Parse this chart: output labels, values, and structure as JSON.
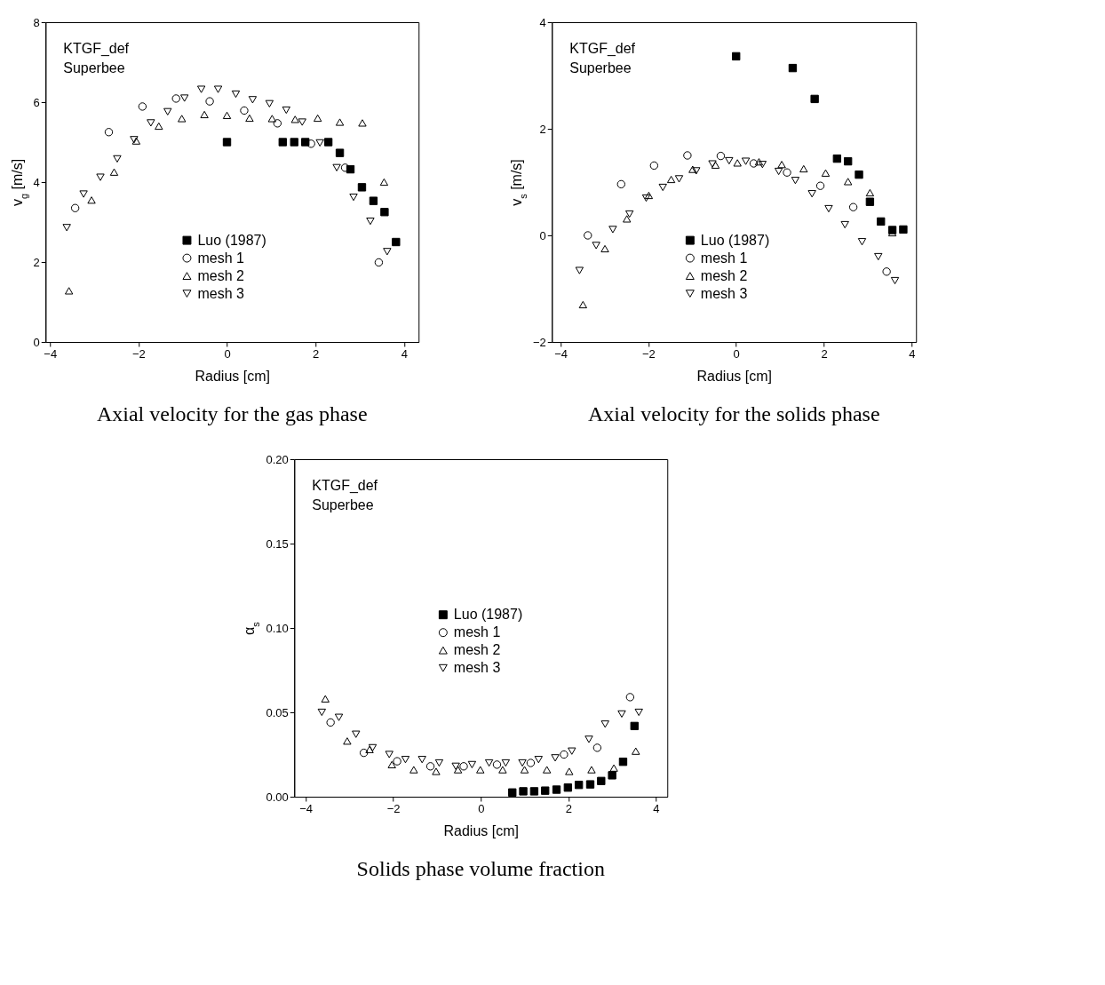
{
  "chart_data": [
    {
      "type": "scatter",
      "title": "Axial velocity for the gas phase",
      "xlabel": "Radius [cm]",
      "ylabel": "v$_{g}$ [m/s]",
      "annotations": [
        "KTGF_def",
        "Superbee"
      ],
      "xlim": [
        -4.1,
        4.33
      ],
      "xticks": [
        -4,
        -2,
        0,
        2,
        4
      ],
      "ylim": [
        0,
        8
      ],
      "yticks": [
        0,
        2,
        4,
        6,
        8
      ],
      "legend": "bottom",
      "grid": false,
      "series": [
        {
          "name": "Luo (1987)",
          "color": "#000000",
          "marker": "square",
          "x": [
            0,
            1.26,
            1.52,
            1.77,
            2.29,
            2.55,
            2.79,
            3.05,
            3.31,
            3.56,
            3.82
          ],
          "values": [
            5.0,
            5.0,
            5.0,
            5.0,
            5.0,
            4.73,
            4.32,
            3.87,
            3.53,
            3.25,
            2.5
          ]
        },
        {
          "name": "mesh 1",
          "color": "#000000",
          "marker": "circle",
          "x": [
            -3.43,
            -2.67,
            -1.91,
            -1.15,
            -0.39,
            0.39,
            1.14,
            1.9,
            2.67,
            3.43
          ],
          "values": [
            3.35,
            5.25,
            5.89,
            6.09,
            6.02,
            5.79,
            5.47,
            4.96,
            4.36,
            1.99
          ]
        },
        {
          "name": "mesh 2",
          "color": "#000000",
          "marker": "triangle",
          "x": [
            -3.57,
            -3.06,
            -2.55,
            -2.05,
            -1.54,
            -1.02,
            -0.51,
            0,
            0.51,
            1.02,
            1.54,
            2.05,
            2.55,
            3.06,
            3.55
          ],
          "values": [
            1.28,
            3.55,
            4.25,
            5.03,
            5.4,
            5.59,
            5.69,
            5.67,
            5.6,
            5.59,
            5.57,
            5.6,
            5.5,
            5.48,
            4.0
          ]
        },
        {
          "name": "mesh 3",
          "color": "#000000",
          "marker": "triangle-down",
          "x": [
            -3.62,
            -3.24,
            -2.86,
            -2.48,
            -2.1,
            -1.72,
            -1.34,
            -0.96,
            -0.58,
            -0.2,
            0.2,
            0.58,
            0.96,
            1.34,
            1.7,
            2.1,
            2.48,
            2.86,
            3.24,
            3.62
          ],
          "values": [
            2.86,
            3.7,
            4.12,
            4.58,
            5.06,
            5.48,
            5.76,
            6.1,
            6.32,
            6.32,
            6.2,
            6.06,
            5.96,
            5.8,
            5.5,
            4.98,
            4.36,
            3.62,
            3.02,
            2.26
          ]
        }
      ]
    },
    {
      "type": "scatter",
      "title": "Axial velocity for the solids phase",
      "xlabel": "Radius [cm]",
      "ylabel": "v$_{s}$ [m/s]",
      "annotations": [
        "KTGF_def",
        "Superbee"
      ],
      "xlim": [
        -4.2,
        4.1
      ],
      "xticks": [
        -4,
        -2,
        0,
        2,
        4
      ],
      "ylim": [
        -2,
        4
      ],
      "yticks": [
        -2,
        0,
        2,
        4
      ],
      "legend": "bottom",
      "grid": false,
      "series": [
        {
          "name": "Luo (1987)",
          "color": "#000000",
          "marker": "square",
          "x": [
            0,
            1.29,
            1.79,
            2.3,
            2.55,
            2.8,
            3.05,
            3.3,
            3.56,
            3.81
          ],
          "values": [
            3.36,
            3.14,
            2.56,
            1.44,
            1.39,
            1.14,
            0.63,
            0.26,
            0.1,
            0.11
          ]
        },
        {
          "name": "mesh 1",
          "color": "#000000",
          "marker": "circle",
          "x": [
            -3.38,
            -2.62,
            -1.87,
            -1.11,
            -0.35,
            0.4,
            1.16,
            1.92,
            2.67,
            3.43
          ],
          "values": [
            0.0,
            0.96,
            1.31,
            1.5,
            1.49,
            1.35,
            1.18,
            0.93,
            0.53,
            -0.68
          ]
        },
        {
          "name": "mesh 2",
          "color": "#000000",
          "marker": "triangle",
          "x": [
            -3.49,
            -2.99,
            -2.49,
            -1.99,
            -1.48,
            -0.99,
            -0.47,
            0.03,
            0.52,
            1.04,
            1.54,
            2.04,
            2.55,
            3.05,
            3.56
          ],
          "values": [
            -1.3,
            -0.25,
            0.31,
            0.75,
            1.05,
            1.24,
            1.32,
            1.36,
            1.38,
            1.33,
            1.25,
            1.17,
            1.01,
            0.8,
            0.05
          ]
        },
        {
          "name": "mesh 3",
          "color": "#000000",
          "marker": "triangle-down",
          "x": [
            -3.57,
            -3.19,
            -2.81,
            -2.43,
            -2.05,
            -1.67,
            -1.3,
            -0.91,
            -0.54,
            -0.16,
            0.22,
            0.6,
            0.97,
            1.35,
            1.73,
            2.11,
            2.48,
            2.87,
            3.24,
            3.62
          ],
          "values": [
            -0.66,
            -0.19,
            0.11,
            0.4,
            0.7,
            0.9,
            1.06,
            1.21,
            1.34,
            1.4,
            1.39,
            1.33,
            1.2,
            1.03,
            0.78,
            0.5,
            0.2,
            -0.12,
            -0.4,
            -0.85
          ]
        }
      ]
    },
    {
      "type": "scatter",
      "title": "Solids phase volume fraction",
      "xlabel": "Radius [cm]",
      "ylabel": "α$_{s}$",
      "annotations": [
        "KTGF_def",
        "Superbee"
      ],
      "xlim": [
        -4.26,
        4.26
      ],
      "xticks": [
        -4,
        -2,
        0,
        2,
        4
      ],
      "ylim": [
        0,
        0.2
      ],
      "yticks": [
        {
          "value": 0,
          "label": "0.00"
        },
        {
          "value": 0.05,
          "label": "0.05"
        },
        {
          "value": 0.1,
          "label": "0.10"
        },
        {
          "value": 0.15,
          "label": "0.15"
        },
        {
          "value": 0.2,
          "label": "0.20"
        }
      ],
      "legend": "center",
      "grid": false,
      "series": [
        {
          "name": "Luo (1987)",
          "color": "#000000",
          "marker": "square",
          "x": [
            0.72,
            0.97,
            1.22,
            1.47,
            1.73,
            1.99,
            2.24,
            2.5,
            2.75,
            3.0,
            3.25,
            3.51
          ],
          "values": [
            0.0025,
            0.0032,
            0.0032,
            0.0036,
            0.0042,
            0.0054,
            0.007,
            0.0073,
            0.0093,
            0.0127,
            0.0207,
            0.0419
          ]
        },
        {
          "name": "mesh 1",
          "color": "#000000",
          "marker": "circle",
          "x": [
            -3.43,
            -2.67,
            -1.91,
            -1.15,
            -0.39,
            0.37,
            1.14,
            1.9,
            2.66,
            3.41
          ],
          "values": [
            0.044,
            0.026,
            0.021,
            0.018,
            0.018,
            0.019,
            0.02,
            0.025,
            0.029,
            0.059
          ]
        },
        {
          "name": "mesh 2",
          "color": "#000000",
          "marker": "triangle",
          "x": [
            -3.55,
            -3.05,
            -2.54,
            -2.03,
            -1.53,
            -1.02,
            -0.52,
            -0.01,
            0.5,
            1.0,
            1.51,
            2.02,
            2.53,
            3.04,
            3.54
          ],
          "values": [
            0.058,
            0.033,
            0.028,
            0.019,
            0.016,
            0.015,
            0.016,
            0.016,
            0.016,
            0.016,
            0.016,
            0.015,
            0.016,
            0.017,
            0.027
          ]
        },
        {
          "name": "mesh 3",
          "color": "#000000",
          "marker": "triangle-down",
          "x": [
            -3.63,
            -3.24,
            -2.85,
            -2.47,
            -2.09,
            -1.72,
            -1.34,
            -0.95,
            -0.57,
            -0.2,
            0.19,
            0.57,
            0.95,
            1.32,
            1.7,
            2.08,
            2.47,
            2.84,
            3.22,
            3.61
          ],
          "values": [
            0.05,
            0.047,
            0.037,
            0.029,
            0.025,
            0.022,
            0.022,
            0.02,
            0.018,
            0.019,
            0.02,
            0.02,
            0.02,
            0.022,
            0.023,
            0.027,
            0.034,
            0.043,
            0.049,
            0.05
          ]
        }
      ]
    }
  ]
}
